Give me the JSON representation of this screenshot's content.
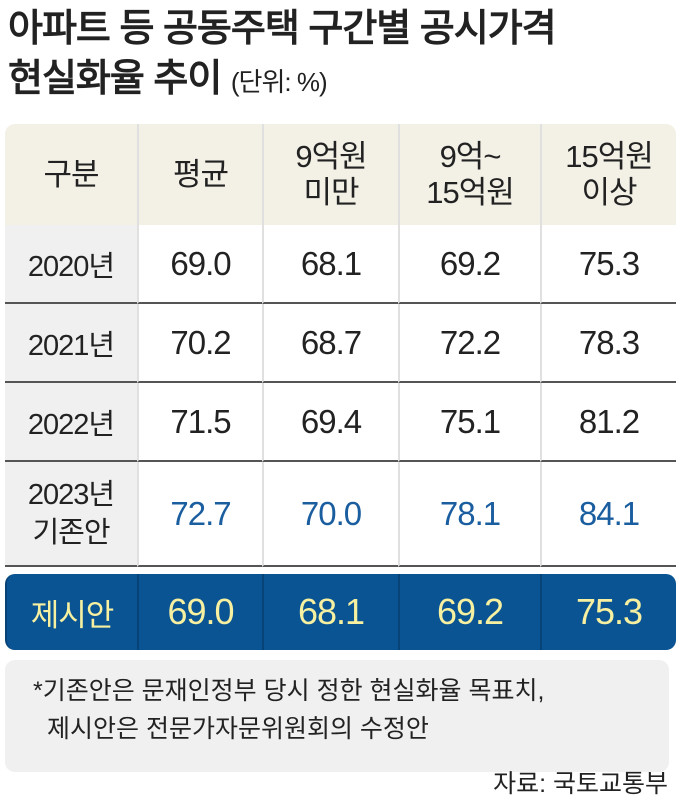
{
  "title": {
    "line1": "아파트 등 공동주택 구간별 공시가격",
    "line2": "현실화율 추이",
    "unit": "(단위: %)"
  },
  "chart_data": {
    "type": "table",
    "columns": [
      "구분",
      "평균",
      "9억원 미만",
      "9억~ 15억원",
      "15억원 이상"
    ],
    "rows": [
      {
        "label": "2020년",
        "values": [
          "69.0",
          "68.1",
          "69.2",
          "75.3"
        ]
      },
      {
        "label": "2021년",
        "values": [
          "70.2",
          "68.7",
          "72.2",
          "78.3"
        ]
      },
      {
        "label": "2022년",
        "values": [
          "71.5",
          "69.4",
          "75.1",
          "81.2"
        ]
      },
      {
        "label": "2023년 기존안",
        "values": [
          "72.7",
          "70.0",
          "78.1",
          "84.1"
        ]
      },
      {
        "label": "제시안",
        "values": [
          "69.0",
          "68.1",
          "69.2",
          "75.3"
        ]
      }
    ]
  },
  "colors": {
    "header_bg": "#f3f1e6",
    "highlight_row": "#0a5494",
    "highlight_text": "#f7f0a0",
    "blue_values": "#1a5ea0"
  },
  "note": {
    "line1": "*기존안은 문재인정부 당시 정한 현실화율 목표치,",
    "line2": "제시안은 전문가자문위원회의 수정안"
  },
  "source": "자료: 국토교통부"
}
